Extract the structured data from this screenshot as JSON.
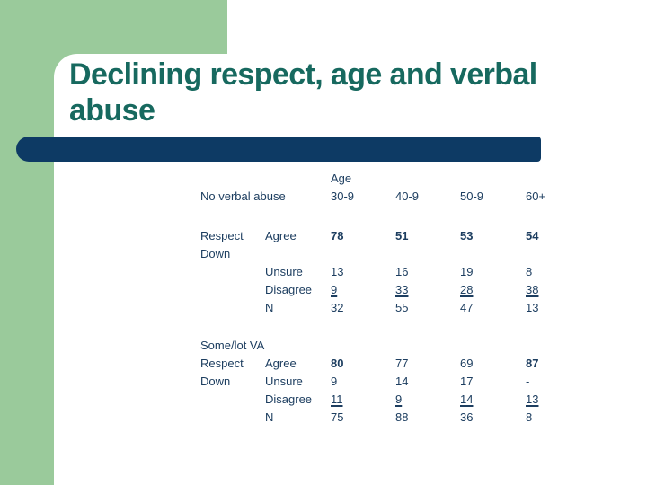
{
  "slide": {
    "title_lines": [
      "Declining respect, age and verbal",
      "abuse"
    ],
    "title_full": "Declining respect, age and verbal abuse"
  },
  "colors": {
    "background_green": "#9aca9b",
    "divider_navy": "#0d3a64",
    "title_teal": "#17695f",
    "table_text_navy": "#1d3e60",
    "panel_white": "#ffffff"
  },
  "table": {
    "age_header": "Age",
    "column_headers": [
      "30-9",
      "40-9",
      "50-9",
      "60+"
    ],
    "rows": [
      {
        "cells": [
          "",
          "",
          "Age",
          "",
          "",
          ""
        ]
      },
      {
        "cells": [
          "No verbal abuse",
          "",
          "30-9",
          "40-9",
          "50-9",
          "60+"
        ]
      },
      {
        "spacer": 24
      },
      {
        "cells": [
          "Respect",
          "Agree",
          "78",
          "51",
          "53",
          "54"
        ],
        "bold": [
          2,
          3,
          4,
          5
        ]
      },
      {
        "cells": [
          "Down",
          "",
          "",
          "",
          "",
          ""
        ]
      },
      {
        "cells": [
          "",
          "Unsure",
          "13",
          "16",
          "19",
          "8"
        ]
      },
      {
        "cells": [
          "",
          "Disagree",
          "9",
          "33",
          "28",
          "38"
        ],
        "underline": [
          2,
          3,
          4,
          5
        ]
      },
      {
        "cells": [
          "",
          "N",
          "32",
          "55",
          "47",
          "13"
        ]
      },
      {
        "spacer": 22
      },
      {
        "cells": [
          "Some/lot VA",
          "",
          "",
          "",
          "",
          ""
        ]
      },
      {
        "cells": [
          "Respect",
          "Agree",
          "80",
          "77",
          "69",
          "87"
        ],
        "bold": [
          2,
          5
        ]
      },
      {
        "cells": [
          "Down",
          "Unsure",
          "9",
          "14",
          "17",
          "-"
        ]
      },
      {
        "cells": [
          "",
          "Disagree",
          "11",
          "9",
          "14",
          "13"
        ],
        "underline": [
          2,
          3,
          4,
          5
        ]
      },
      {
        "cells": [
          "",
          "N",
          "75",
          "88",
          "36",
          "8"
        ]
      }
    ]
  },
  "chart_data": {
    "type": "table",
    "title": "Declining respect, age and verbal abuse",
    "categories": [
      "30-9",
      "40-9",
      "50-9",
      "60+"
    ],
    "series": [
      {
        "name": "No verbal abuse - Respect Down - Agree",
        "values": [
          78,
          51,
          53,
          54
        ]
      },
      {
        "name": "No verbal abuse - Respect Down - Unsure",
        "values": [
          13,
          16,
          19,
          8
        ]
      },
      {
        "name": "No verbal abuse - Respect Down - Disagree",
        "values": [
          9,
          33,
          28,
          38
        ]
      },
      {
        "name": "No verbal abuse - N",
        "values": [
          32,
          55,
          47,
          13
        ]
      },
      {
        "name": "Some/lot VA - Respect Down - Agree",
        "values": [
          80,
          77,
          69,
          87
        ]
      },
      {
        "name": "Some/lot VA - Respect Down - Unsure",
        "values": [
          9,
          14,
          17,
          null
        ]
      },
      {
        "name": "Some/lot VA - Respect Down - Disagree",
        "values": [
          11,
          9,
          14,
          13
        ]
      },
      {
        "name": "Some/lot VA - N",
        "values": [
          75,
          88,
          36,
          8
        ]
      }
    ]
  }
}
